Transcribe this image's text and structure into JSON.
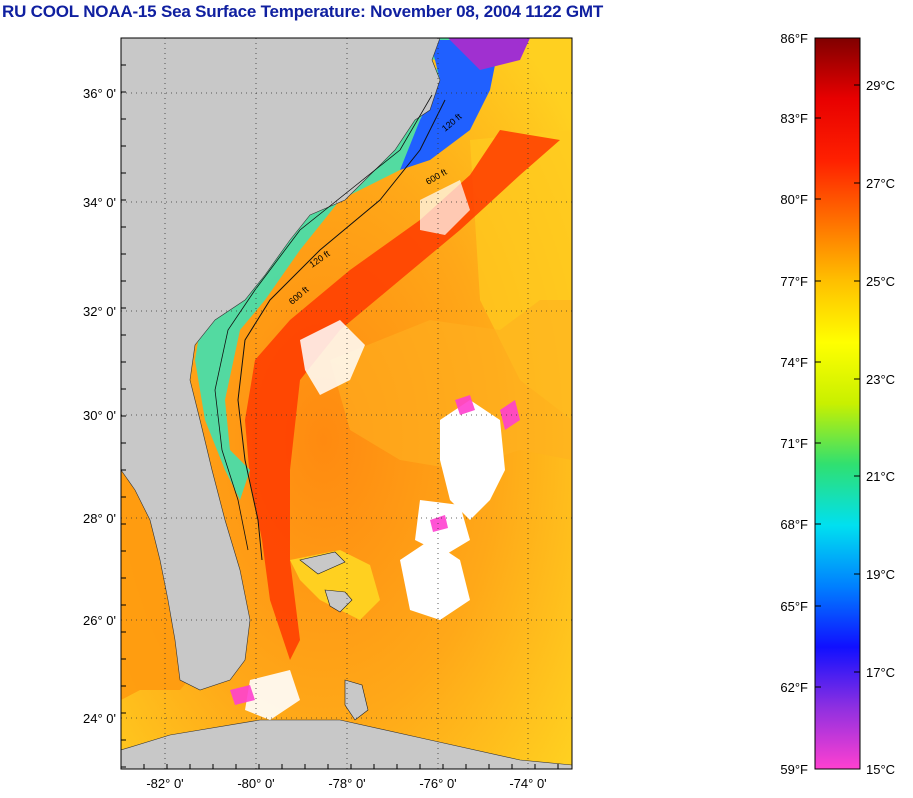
{
  "title": "RU COOL  NOAA-15  Sea Surface Temperature:  November 08, 2004 1122 GMT",
  "map": {
    "lat_labels": [
      "36° 0'",
      "34° 0'",
      "32° 0'",
      "30° 0'",
      "28° 0'",
      "26° 0'",
      "24° 0'"
    ],
    "lon_labels": [
      "-82° 0'",
      "-80° 0'",
      "-78° 0'",
      "-76° 0'",
      "-74° 0'"
    ],
    "isobath_labels": [
      "120 ft",
      "600 ft"
    ],
    "land_color": "#c8c8c8",
    "cloud_color": "#ffffff"
  },
  "colorbar": {
    "fahrenheit_labels": [
      "86°F",
      "83°F",
      "80°F",
      "77°F",
      "74°F",
      "71°F",
      "68°F",
      "65°F",
      "62°F",
      "59°F"
    ],
    "celsius_labels": [
      "29°C",
      "27°C",
      "25°C",
      "23°C",
      "21°C",
      "19°C",
      "17°C",
      "15°C"
    ],
    "colors": [
      "#ff40d0",
      "#9030e0",
      "#1010ff",
      "#0080ff",
      "#00e0f0",
      "#30e070",
      "#c8f000",
      "#ffff00",
      "#ffc000",
      "#ff7000",
      "#ff2000",
      "#e80000",
      "#800000"
    ]
  }
}
